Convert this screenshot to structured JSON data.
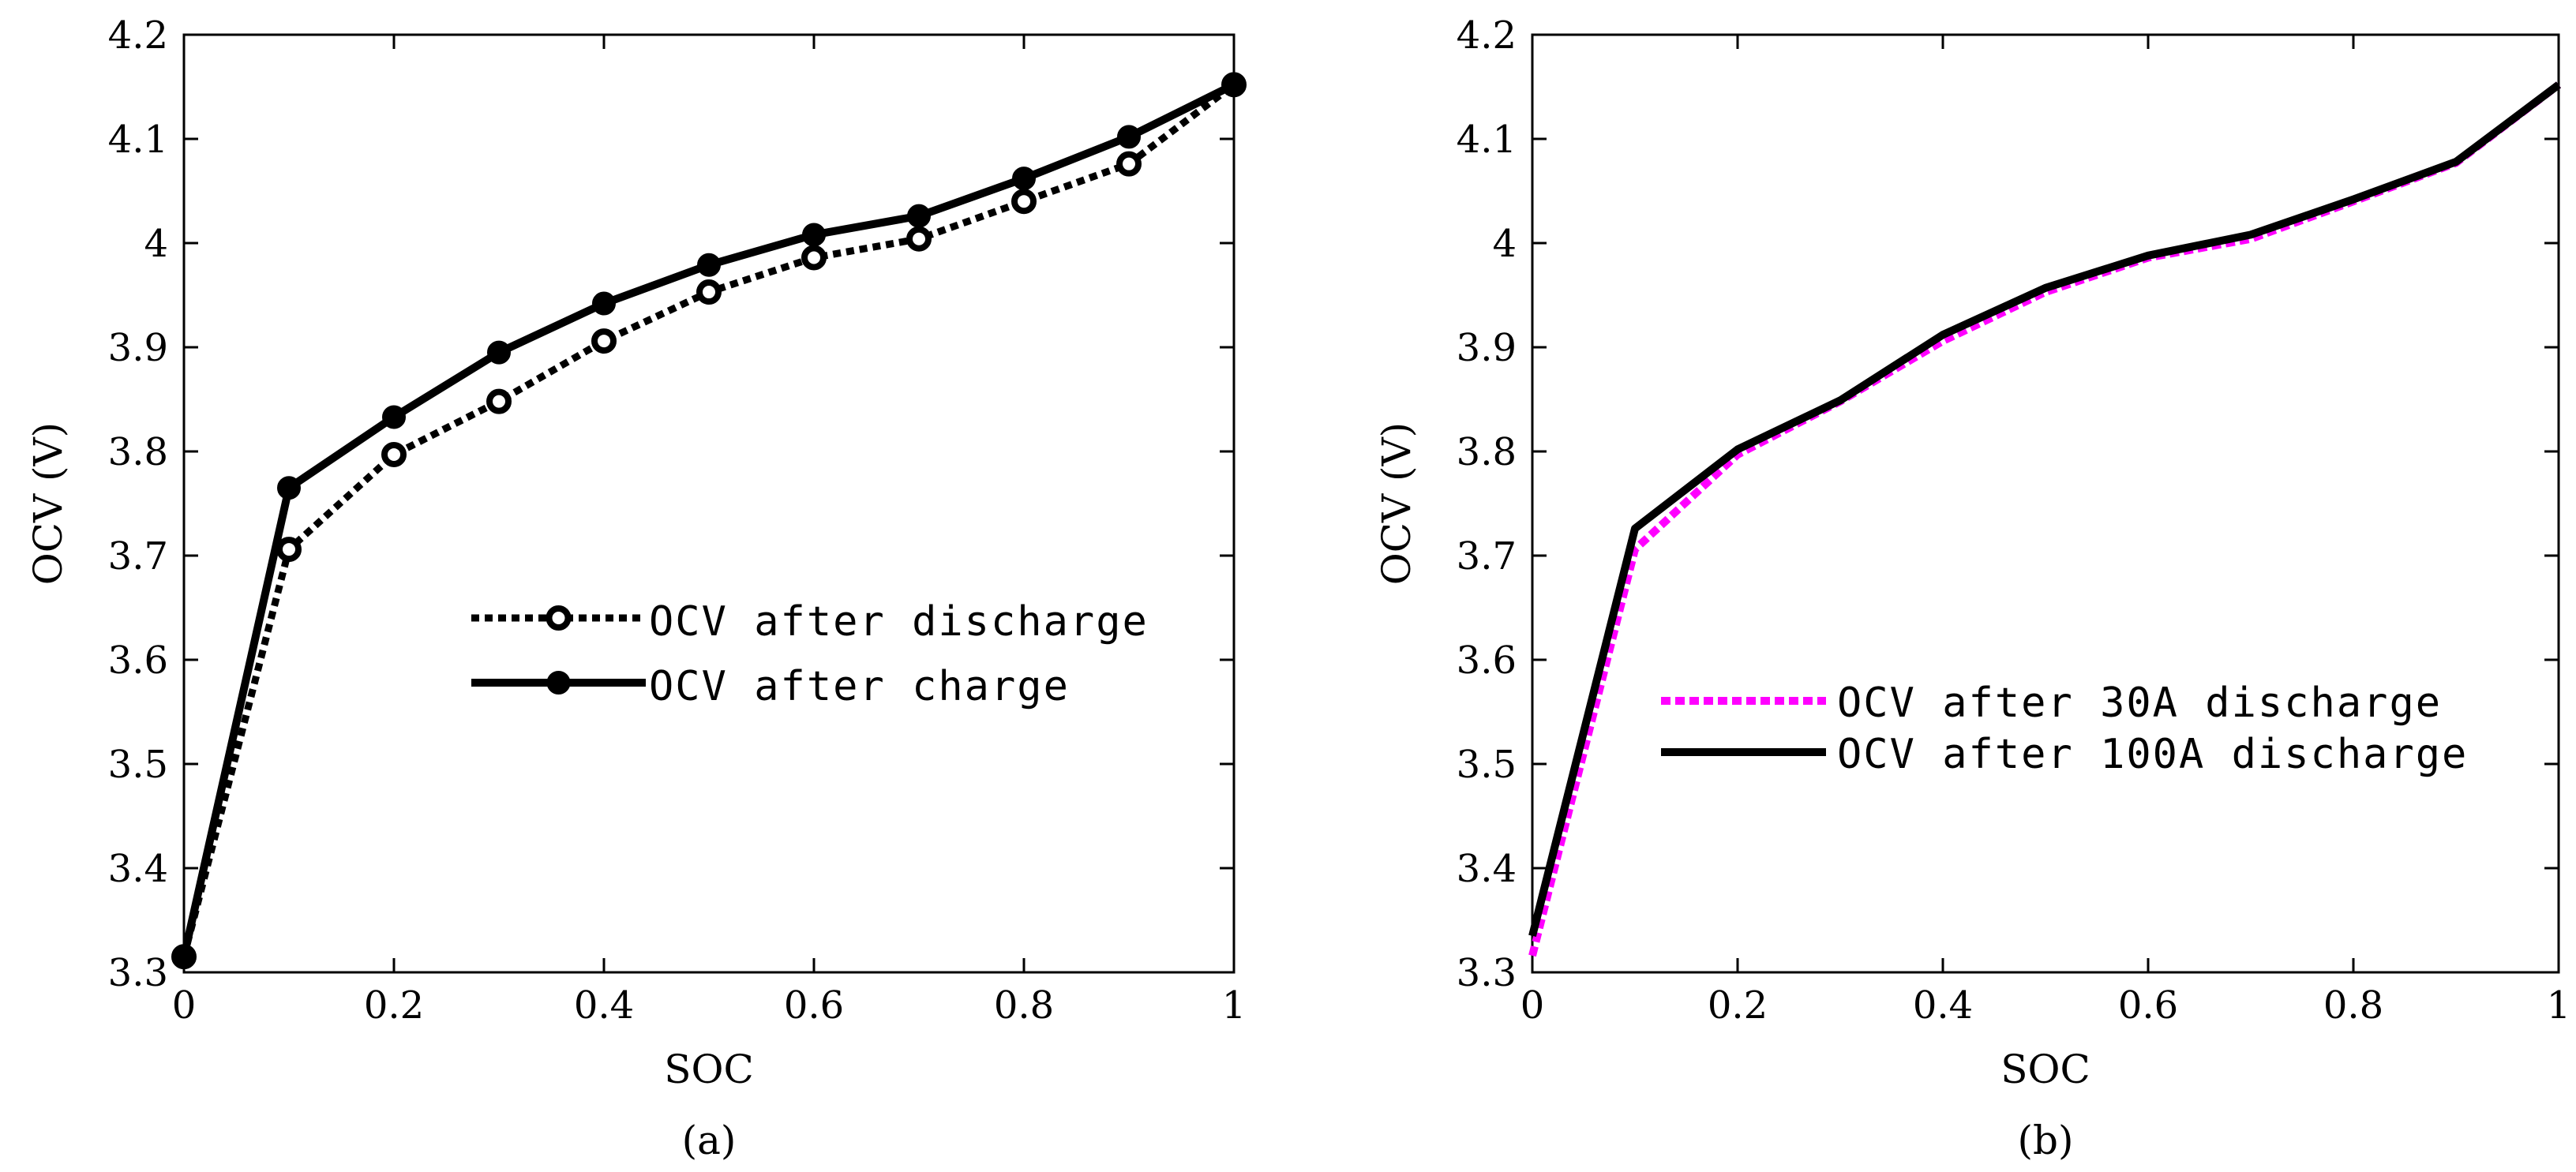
{
  "chart_data": [
    {
      "type": "line",
      "panel_label": "(a)",
      "xlabel": "SOC",
      "ylabel": "OCV (V)",
      "xlim": [
        0,
        1
      ],
      "ylim": [
        3.3,
        4.2
      ],
      "x_ticks": [
        0,
        0.2,
        0.4,
        0.6,
        0.8,
        1
      ],
      "x_tick_labels": [
        "0",
        "0.2",
        "0.4",
        "0.6",
        "0.8",
        "1"
      ],
      "y_ticks": [
        3.3,
        3.4,
        3.5,
        3.6,
        3.7,
        3.8,
        3.9,
        4.0,
        4.1,
        4.2
      ],
      "y_tick_labels": [
        "3.3",
        "3.4",
        "3.5",
        "3.6",
        "3.7",
        "3.8",
        "3.9",
        "4",
        "4.1",
        "4.2"
      ],
      "grid": false,
      "legend_position": "center-right",
      "x": [
        0,
        0.1,
        0.2,
        0.3,
        0.4,
        0.5,
        0.6,
        0.7,
        0.8,
        0.9,
        1.0
      ],
      "series": [
        {
          "name": "OCV after discharge",
          "style": "dotted",
          "marker": "hollow-circle",
          "color": "#000000",
          "values": [
            3.315,
            3.706,
            3.797,
            3.848,
            3.906,
            3.953,
            3.986,
            4.004,
            4.04,
            4.076,
            4.152
          ]
        },
        {
          "name": "OCV after charge",
          "style": "solid",
          "marker": "filled-circle",
          "color": "#000000",
          "values": [
            3.315,
            3.765,
            3.833,
            3.895,
            3.942,
            3.979,
            4.008,
            4.026,
            4.062,
            4.102,
            4.152
          ]
        }
      ]
    },
    {
      "type": "line",
      "panel_label": "(b)",
      "xlabel": "SOC",
      "ylabel": "OCV (V)",
      "xlim": [
        0,
        1
      ],
      "ylim": [
        3.3,
        4.2
      ],
      "x_ticks": [
        0,
        0.2,
        0.4,
        0.6,
        0.8,
        1
      ],
      "x_tick_labels": [
        "0",
        "0.2",
        "0.4",
        "0.6",
        "0.8",
        "1"
      ],
      "y_ticks": [
        3.3,
        3.4,
        3.5,
        3.6,
        3.7,
        3.8,
        3.9,
        4.0,
        4.1,
        4.2
      ],
      "y_tick_labels": [
        "3.3",
        "3.4",
        "3.5",
        "3.6",
        "3.7",
        "3.8",
        "3.9",
        "4",
        "4.1",
        "4.2"
      ],
      "grid": false,
      "legend_position": "center-right",
      "x": [
        0,
        0.1,
        0.2,
        0.3,
        0.4,
        0.5,
        0.6,
        0.7,
        0.8,
        0.9,
        1.0
      ],
      "series": [
        {
          "name": "OCV after 30A discharge",
          "style": "dotted",
          "marker": "none",
          "color": "#ff00ff",
          "values": [
            3.316,
            3.706,
            3.797,
            3.848,
            3.906,
            3.953,
            3.986,
            4.004,
            4.04,
            4.077,
            4.152
          ]
        },
        {
          "name": "OCV after 100A discharge",
          "style": "solid",
          "marker": "none",
          "color": "#000000",
          "values": [
            3.335,
            3.726,
            3.802,
            3.849,
            3.912,
            3.957,
            3.988,
            4.008,
            4.042,
            4.078,
            4.152
          ]
        }
      ]
    }
  ]
}
